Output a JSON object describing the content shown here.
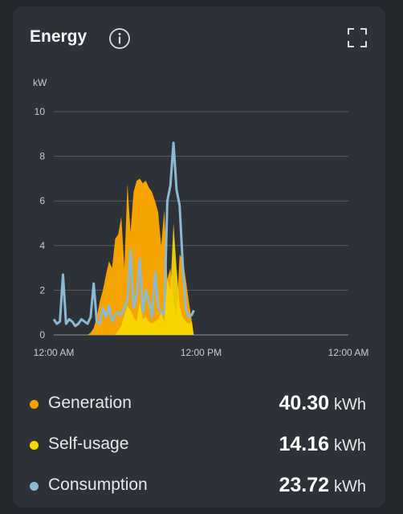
{
  "header": {
    "title": "Energy",
    "info_icon": "info-icon",
    "fullscreen_icon": "fullscreen-icon"
  },
  "chart_data": {
    "type": "area",
    "ylabel": "kW",
    "ylim": [
      0,
      10
    ],
    "yticks": [
      0,
      2,
      4,
      6,
      8,
      10
    ],
    "xlim": [
      0,
      48
    ],
    "xtick_labels": [
      "12:00 AM",
      "12:00 PM",
      "12:00 AM"
    ],
    "series": [
      {
        "name": "Generation",
        "color": "#f5a300",
        "x": [
          0,
          5.5,
          6,
          6.5,
          7,
          7.5,
          8,
          8.5,
          9,
          9.5,
          10,
          10.5,
          11,
          11.5,
          12,
          12.5,
          13,
          13.5,
          14,
          14.5,
          15,
          15.5,
          16,
          16.5,
          17,
          17.5,
          18,
          18.5,
          19,
          19.5,
          20,
          20.5,
          21,
          21.5,
          22,
          22.5,
          22.8
        ],
        "values": [
          0,
          0,
          0.1,
          0.3,
          0.8,
          1.5,
          2.0,
          2.7,
          3.3,
          3.0,
          4.3,
          4.5,
          5.3,
          3.0,
          6.8,
          4.6,
          6.4,
          6.9,
          7.0,
          6.8,
          6.9,
          6.6,
          6.4,
          6.0,
          5.5,
          4.0,
          5.6,
          2.5,
          3.0,
          1.5,
          0.8,
          3.6,
          3.4,
          2.5,
          1.5,
          0.6,
          0
        ]
      },
      {
        "name": "Self-usage",
        "color": "#f7d800",
        "x": [
          0,
          10,
          10.5,
          11,
          11.5,
          12,
          12.5,
          13,
          13.5,
          14,
          14.5,
          15,
          15.5,
          16,
          16.5,
          17,
          17.5,
          18,
          18.5,
          19,
          19.5,
          20,
          20.5,
          21,
          21.5,
          22,
          22.5,
          22.8
        ],
        "values": [
          0,
          0,
          0.2,
          0.4,
          0.9,
          1.3,
          1.1,
          0.8,
          0.6,
          1.5,
          0.7,
          0.8,
          0.6,
          0.5,
          0.6,
          0.7,
          1.0,
          0.6,
          2.5,
          2.0,
          5.0,
          3.0,
          1.3,
          0.8,
          0.6,
          0.5,
          0.6,
          0
        ]
      },
      {
        "name": "Consumption",
        "color": "#8db9d4",
        "x": [
          0,
          0.5,
          1,
          1.5,
          2,
          2.5,
          3,
          3.5,
          4,
          4.5,
          5,
          5.5,
          6,
          6.5,
          7,
          7.5,
          8,
          8.5,
          9,
          9.5,
          10,
          10.5,
          11,
          11.5,
          12,
          12.5,
          13,
          13.5,
          14,
          14.5,
          15,
          15.5,
          16,
          16.5,
          17,
          17.5,
          18,
          18.5,
          19,
          19.5,
          20,
          20.5,
          21,
          21.5,
          22,
          22.5,
          22.8
        ],
        "values": [
          0.7,
          0.5,
          0.6,
          2.7,
          0.5,
          0.7,
          0.6,
          0.4,
          0.5,
          0.7,
          0.6,
          0.5,
          0.8,
          2.3,
          0.6,
          0.5,
          1.2,
          0.8,
          1.3,
          0.6,
          0.9,
          1.0,
          0.9,
          1.2,
          1.6,
          3.8,
          1.2,
          1.8,
          3.4,
          1.0,
          2.0,
          1.5,
          0.8,
          2.8,
          1.3,
          1.0,
          0.9,
          6.0,
          6.7,
          8.6,
          6.5,
          5.8,
          3.2,
          1.2,
          0.8,
          0.9,
          1.1
        ]
      }
    ]
  },
  "legend": [
    {
      "name": "Generation",
      "value": "40.30",
      "unit": "kWh",
      "color": "#f5a300"
    },
    {
      "name": "Self-usage",
      "value": "14.16",
      "unit": "kWh",
      "color": "#f7d800"
    },
    {
      "name": "Consumption",
      "value": "23.72",
      "unit": "kWh",
      "color": "#8db9d4"
    }
  ]
}
